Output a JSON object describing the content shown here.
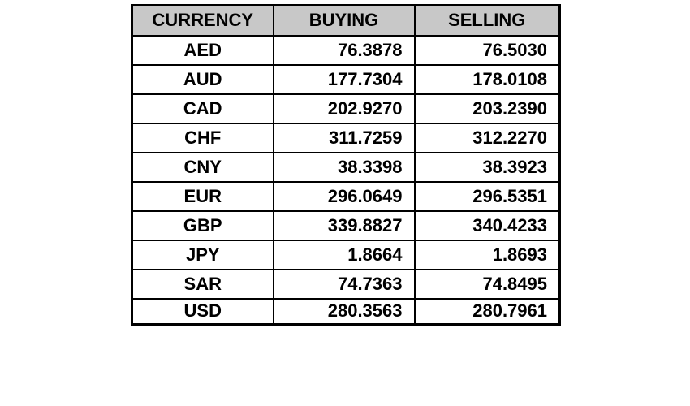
{
  "table": {
    "headers": [
      "CURRENCY",
      "BUYING",
      "SELLING"
    ],
    "header_bg": "#c8c8c8",
    "rows": [
      {
        "currency": "AED",
        "buying": "76.3878",
        "selling": "76.5030"
      },
      {
        "currency": "AUD",
        "buying": "177.7304",
        "selling": "178.0108"
      },
      {
        "currency": "CAD",
        "buying": "202.9270",
        "selling": "203.2390"
      },
      {
        "currency": "CHF",
        "buying": "311.7259",
        "selling": "312.2270"
      },
      {
        "currency": "CNY",
        "buying": "38.3398",
        "selling": "38.3923"
      },
      {
        "currency": "EUR",
        "buying": "296.0649",
        "selling": "296.5351"
      },
      {
        "currency": "GBP",
        "buying": "339.8827",
        "selling": "340.4233"
      },
      {
        "currency": "JPY",
        "buying": "1.8664",
        "selling": "1.8693"
      },
      {
        "currency": "SAR",
        "buying": "74.7363",
        "selling": "74.8495"
      },
      {
        "currency": "USD",
        "buying": "280.3563",
        "selling": "280.7961"
      }
    ]
  }
}
